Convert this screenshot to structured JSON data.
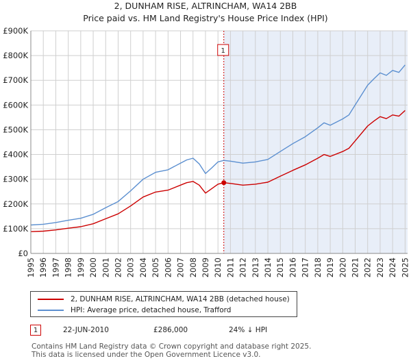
{
  "chart_data": {
    "type": "line",
    "title": "2, DUNHAM RISE, ALTRINCHAM, WA14 2BB",
    "subtitle": "Price paid vs. HM Land Registry's House Price Index (HPI)",
    "xlim": [
      1995,
      2025.2
    ],
    "ylim": [
      0,
      900000
    ],
    "x_ticks": [
      1995,
      1996,
      1997,
      1998,
      1999,
      2000,
      2001,
      2002,
      2003,
      2004,
      2005,
      2006,
      2007,
      2008,
      2009,
      2010,
      2011,
      2012,
      2013,
      2014,
      2015,
      2016,
      2017,
      2018,
      2019,
      2020,
      2021,
      2022,
      2023,
      2024,
      2025
    ],
    "x_tick_labels": [
      "1995",
      "1996",
      "1997",
      "1998",
      "1999",
      "2000",
      "2001",
      "2002",
      "2003",
      "2004",
      "2005",
      "2006",
      "2007",
      "2008",
      "2009",
      "2010",
      "2011",
      "2012",
      "2013",
      "2014",
      "2015",
      "2016",
      "2017",
      "2018",
      "2019",
      "2020",
      "2021",
      "2022",
      "2023",
      "2024",
      "2025"
    ],
    "y_ticks": [
      0,
      100000,
      200000,
      300000,
      400000,
      500000,
      600000,
      700000,
      800000,
      900000
    ],
    "y_tick_labels": [
      "£0",
      "£100K",
      "£200K",
      "£300K",
      "£400K",
      "£500K",
      "£600K",
      "£700K",
      "£800K",
      "£900K"
    ],
    "grid": true,
    "shaded_region": {
      "from": 2010.47,
      "to": 2025.2,
      "color": "#e8eef8"
    },
    "sale_marker": {
      "label": "1",
      "x": 2010.47,
      "y": 286000,
      "color": "#cc0000"
    },
    "series": [
      {
        "name": "2, DUNHAM RISE, ALTRINCHAM, WA14 2BB (detached house)",
        "color": "#cc0000",
        "x": [
          1995,
          1996,
          1997,
          1998,
          1999,
          2000,
          2001,
          2002,
          2003,
          2004,
          2005,
          2006,
          2007,
          2007.5,
          2008,
          2008.5,
          2009,
          2009.5,
          2010,
          2010.47,
          2011,
          2012,
          2013,
          2014,
          2015,
          2016,
          2017,
          2018,
          2018.5,
          2019,
          2020,
          2020.5,
          2021,
          2022,
          2022.5,
          2023,
          2023.5,
          2024,
          2024.5,
          2025
        ],
        "y": [
          88000,
          90000,
          95000,
          102000,
          108000,
          120000,
          140000,
          160000,
          192000,
          228000,
          248000,
          256000,
          276000,
          286000,
          291000,
          276000,
          244000,
          262000,
          280000,
          286000,
          283000,
          276000,
          280000,
          288000,
          312000,
          336000,
          358000,
          385000,
          400000,
          392000,
          412000,
          425000,
          455000,
          515000,
          535000,
          553000,
          545000,
          560000,
          555000,
          578000
        ]
      },
      {
        "name": "HPI: Average price, detached house, Trafford",
        "color": "#5b8fd0",
        "x": [
          1995,
          1996,
          1997,
          1998,
          1999,
          2000,
          2001,
          2002,
          2003,
          2004,
          2005,
          2006,
          2007,
          2007.5,
          2008,
          2008.5,
          2009,
          2009.5,
          2010,
          2010.47,
          2011,
          2012,
          2013,
          2014,
          2015,
          2016,
          2017,
          2018,
          2018.5,
          2019,
          2020,
          2020.5,
          2021,
          2022,
          2022.5,
          2023,
          2023.5,
          2024,
          2024.5,
          2025
        ],
        "y": [
          115000,
          118000,
          125000,
          134000,
          142000,
          158000,
          185000,
          210000,
          253000,
          300000,
          328000,
          338000,
          365000,
          378000,
          385000,
          362000,
          323000,
          346000,
          370000,
          376000,
          373000,
          365000,
          370000,
          380000,
          412000,
          444000,
          472000,
          508000,
          528000,
          518000,
          544000,
          560000,
          600000,
          680000,
          706000,
          730000,
          720000,
          740000,
          732000,
          762000
        ]
      }
    ],
    "legend": {
      "placement": "below",
      "entries": [
        {
          "label": "2, DUNHAM RISE, ALTRINCHAM, WA14 2BB (detached house)",
          "color": "#cc0000"
        },
        {
          "label": "HPI: Average price, detached house, Trafford",
          "color": "#5b8fd0"
        }
      ]
    },
    "sale_table": [
      {
        "badge": "1",
        "date": "22-JUN-2010",
        "price": "£286,000",
        "hpi_diff": "24% ↓ HPI"
      }
    ],
    "footer": [
      "Contains HM Land Registry data © Crown copyright and database right 2025.",
      "This data is licensed under the Open Government Licence v3.0."
    ]
  }
}
